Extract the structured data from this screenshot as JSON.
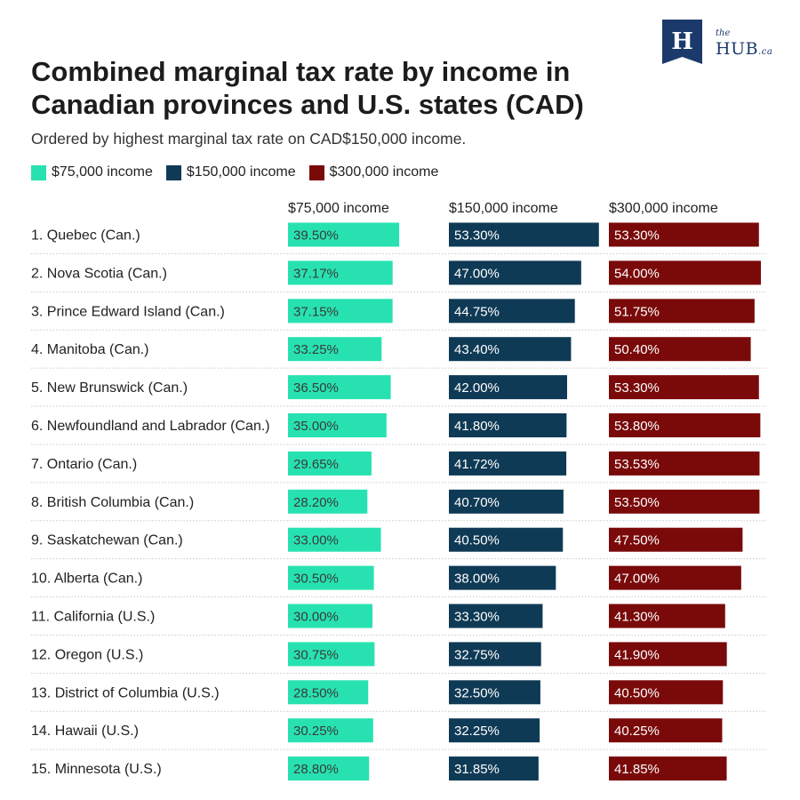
{
  "header": {
    "title": "Combined marginal tax rate by income in Canadian provinces and U.S. states (CAD)",
    "subtitle": "Ordered by highest marginal tax rate on CAD$150,000 income.",
    "logo_the": "the",
    "logo_word": "HUB",
    "logo_suffix": ".ca",
    "logo_letter": "H"
  },
  "colors": {
    "income_75k": "#27e2b0",
    "income_150k": "#0f3a55",
    "income_300k": "#7a0a0a",
    "logo_blue": "#1b3a6b"
  },
  "chart_data": {
    "type": "bar",
    "orientation": "horizontal",
    "title": "Combined marginal tax rate by income in Canadian provinces and U.S. states (CAD)",
    "categories": [
      "1. Quebec (Can.)",
      "2. Nova Scotia (Can.)",
      "3. Prince Edward Island (Can.)",
      "4. Manitoba (Can.)",
      "5. New Brunswick (Can.)",
      "6. Newfoundland and Labrador (Can.)",
      "7. Ontario (Can.)",
      "8. British Columbia (Can.)",
      "9. Saskatchewan (Can.)",
      "10. Alberta (Can.)",
      "11. California (U.S.)",
      "12. Oregon (U.S.)",
      "13. District of Columbia (U.S.)",
      "14. Hawaii (U.S.)",
      "15. Minnesota (U.S.)"
    ],
    "series": [
      {
        "name": "$75,000 income",
        "color": "#27e2b0",
        "values": [
          39.5,
          37.17,
          37.15,
          33.25,
          36.5,
          35.0,
          29.65,
          28.2,
          33.0,
          30.5,
          30.0,
          30.75,
          28.5,
          30.25,
          28.8
        ],
        "labels": [
          "39.50%",
          "37.17%",
          "37.15%",
          "33.25%",
          "36.50%",
          "35.00%",
          "29.65%",
          "28.20%",
          "33.00%",
          "30.50%",
          "30.00%",
          "30.75%",
          "28.50%",
          "30.25%",
          "28.80%"
        ]
      },
      {
        "name": "$150,000 income",
        "color": "#0f3a55",
        "values": [
          53.3,
          47.0,
          44.75,
          43.4,
          42.0,
          41.8,
          41.72,
          40.7,
          40.5,
          38.0,
          33.3,
          32.75,
          32.5,
          32.25,
          31.85
        ],
        "labels": [
          "53.30%",
          "47.00%",
          "44.75%",
          "43.40%",
          "42.00%",
          "41.80%",
          "41.72%",
          "40.70%",
          "40.50%",
          "38.00%",
          "33.30%",
          "32.75%",
          "32.50%",
          "32.25%",
          "31.85%"
        ]
      },
      {
        "name": "$300,000 income",
        "color": "#7a0a0a",
        "values": [
          53.3,
          54.0,
          51.75,
          50.4,
          53.3,
          53.8,
          53.53,
          53.5,
          47.5,
          47.0,
          41.3,
          41.9,
          40.5,
          40.25,
          41.85
        ],
        "labels": [
          "53.30%",
          "54.00%",
          "51.75%",
          "50.40%",
          "53.30%",
          "53.80%",
          "53.53%",
          "53.50%",
          "47.50%",
          "47.00%",
          "41.30%",
          "41.90%",
          "40.50%",
          "40.25%",
          "41.85%"
        ]
      }
    ],
    "column_headers": [
      "$75,000 income",
      "$150,000 income",
      "$300,000 income"
    ],
    "legend": [
      "$75,000 income",
      "$150,000 income",
      "$300,000 income"
    ],
    "legend_position": "top-left",
    "value_max": 54.0
  }
}
